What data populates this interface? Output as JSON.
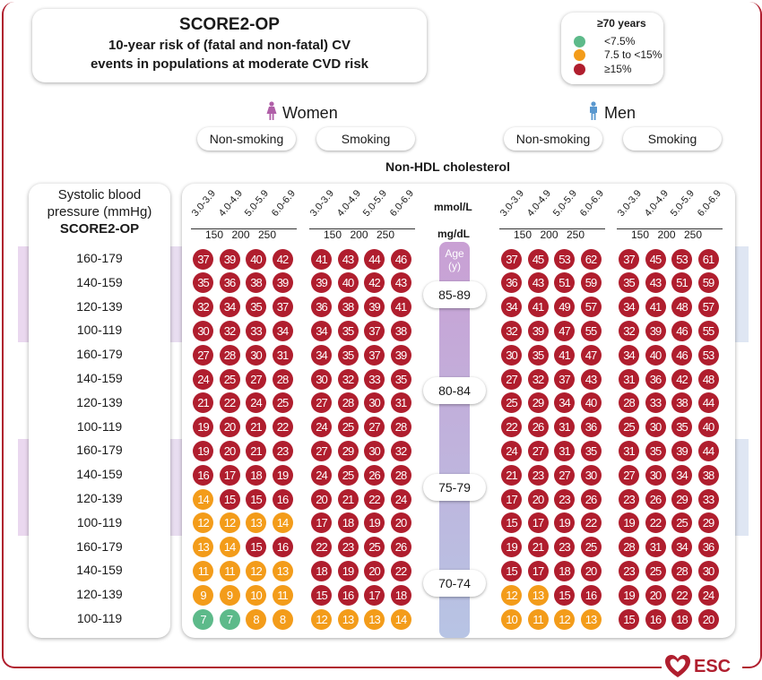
{
  "title": "SCORE2-OP",
  "subtitle_line1": "10-year risk of (fatal and non-fatal) CV",
  "subtitle_line2": "events in populations at moderate CVD risk",
  "legend": {
    "title": "≥70 years",
    "items": [
      {
        "label": "<7.5%",
        "color": "#5dba8a"
      },
      {
        "label": "7.5 to <15%",
        "color": "#f39c1a"
      },
      {
        "label": "≥15%",
        "color": "#b01e2e"
      }
    ]
  },
  "women_label": "Women",
  "men_label": "Men",
  "smoking_labels": [
    "Non-smoking",
    "Smoking",
    "Non-smoking",
    "Smoking"
  ],
  "x_title": "Non-HDL cholesterol",
  "sbp_header": {
    "line1": "Systolic blood",
    "line2": "pressure (mmHg)",
    "line3": "SCORE2-OP"
  },
  "units": {
    "mmol": "mmol/L",
    "mg": "mg/dL"
  },
  "age_header": {
    "line1": "Age",
    "line2": "(y)"
  },
  "esc_label": "ESC",
  "chart_data": {
    "type": "heatmap",
    "title": "SCORE2-OP",
    "cholesterol_mmol": [
      "3.0-3.9",
      "4.0-4.9",
      "5.0-5.9",
      "6.0-6.9"
    ],
    "cholesterol_mg": [
      "150",
      "200",
      "250"
    ],
    "sbp_rows": [
      "160-179",
      "140-159",
      "120-139",
      "100-119"
    ],
    "age_groups": [
      "85-89",
      "80-84",
      "75-79",
      "70-74"
    ],
    "panels": [
      "Women Non-smoking",
      "Women Smoking",
      "Men Non-smoking",
      "Men Smoking"
    ],
    "thresholds": [
      7.5,
      15
    ],
    "values": {
      "85-89": {
        "Women Non-smoking": [
          [
            37,
            39,
            40,
            42
          ],
          [
            35,
            36,
            38,
            39
          ],
          [
            32,
            34,
            35,
            37
          ],
          [
            30,
            32,
            33,
            34
          ]
        ],
        "Women Smoking": [
          [
            41,
            43,
            44,
            46
          ],
          [
            39,
            40,
            42,
            43
          ],
          [
            36,
            38,
            39,
            41
          ],
          [
            34,
            35,
            37,
            38
          ]
        ],
        "Men Non-smoking": [
          [
            37,
            45,
            53,
            62
          ],
          [
            36,
            43,
            51,
            59
          ],
          [
            34,
            41,
            49,
            57
          ],
          [
            32,
            39,
            47,
            55
          ]
        ],
        "Men Smoking": [
          [
            37,
            45,
            53,
            61
          ],
          [
            35,
            43,
            51,
            59
          ],
          [
            34,
            41,
            48,
            57
          ],
          [
            32,
            39,
            46,
            55
          ]
        ]
      },
      "80-84": {
        "Women Non-smoking": [
          [
            27,
            28,
            30,
            31
          ],
          [
            24,
            25,
            27,
            28
          ],
          [
            21,
            22,
            24,
            25
          ],
          [
            19,
            20,
            21,
            22
          ]
        ],
        "Women Smoking": [
          [
            34,
            35,
            37,
            39
          ],
          [
            30,
            32,
            33,
            35
          ],
          [
            27,
            28,
            30,
            31
          ],
          [
            24,
            25,
            27,
            28
          ]
        ],
        "Men Non-smoking": [
          [
            30,
            35,
            41,
            47
          ],
          [
            27,
            32,
            37,
            43
          ],
          [
            25,
            29,
            34,
            40
          ],
          [
            22,
            26,
            31,
            36
          ]
        ],
        "Men Smoking": [
          [
            34,
            40,
            46,
            53
          ],
          [
            31,
            36,
            42,
            48
          ],
          [
            28,
            33,
            38,
            44
          ],
          [
            25,
            30,
            35,
            40
          ]
        ]
      },
      "75-79": {
        "Women Non-smoking": [
          [
            19,
            20,
            21,
            23
          ],
          [
            16,
            17,
            18,
            19
          ],
          [
            14,
            15,
            15,
            16
          ],
          [
            12,
            12,
            13,
            14
          ]
        ],
        "Women Smoking": [
          [
            27,
            29,
            30,
            32
          ],
          [
            24,
            25,
            26,
            28
          ],
          [
            20,
            21,
            22,
            24
          ],
          [
            17,
            18,
            19,
            20
          ]
        ],
        "Men Non-smoking": [
          [
            24,
            27,
            31,
            35
          ],
          [
            21,
            23,
            27,
            30
          ],
          [
            17,
            20,
            23,
            26
          ],
          [
            15,
            17,
            19,
            22
          ]
        ],
        "Men Smoking": [
          [
            31,
            35,
            39,
            44
          ],
          [
            27,
            30,
            34,
            38
          ],
          [
            23,
            26,
            29,
            33
          ],
          [
            19,
            22,
            25,
            29
          ]
        ]
      },
      "70-74": {
        "Women Non-smoking": [
          [
            13,
            14,
            15,
            16
          ],
          [
            11,
            11,
            12,
            13
          ],
          [
            9,
            9,
            10,
            11
          ],
          [
            7,
            7,
            8,
            8
          ]
        ],
        "Women Smoking": [
          [
            22,
            23,
            25,
            26
          ],
          [
            18,
            19,
            20,
            22
          ],
          [
            15,
            16,
            17,
            18
          ],
          [
            12,
            13,
            13,
            14
          ]
        ],
        "Men Non-smoking": [
          [
            19,
            21,
            23,
            25
          ],
          [
            15,
            17,
            18,
            20
          ],
          [
            12,
            13,
            15,
            16
          ],
          [
            10,
            11,
            12,
            13
          ]
        ],
        "Men Smoking": [
          [
            28,
            31,
            34,
            36
          ],
          [
            23,
            25,
            28,
            30
          ],
          [
            19,
            20,
            22,
            24
          ],
          [
            15,
            16,
            18,
            20
          ]
        ]
      }
    }
  }
}
